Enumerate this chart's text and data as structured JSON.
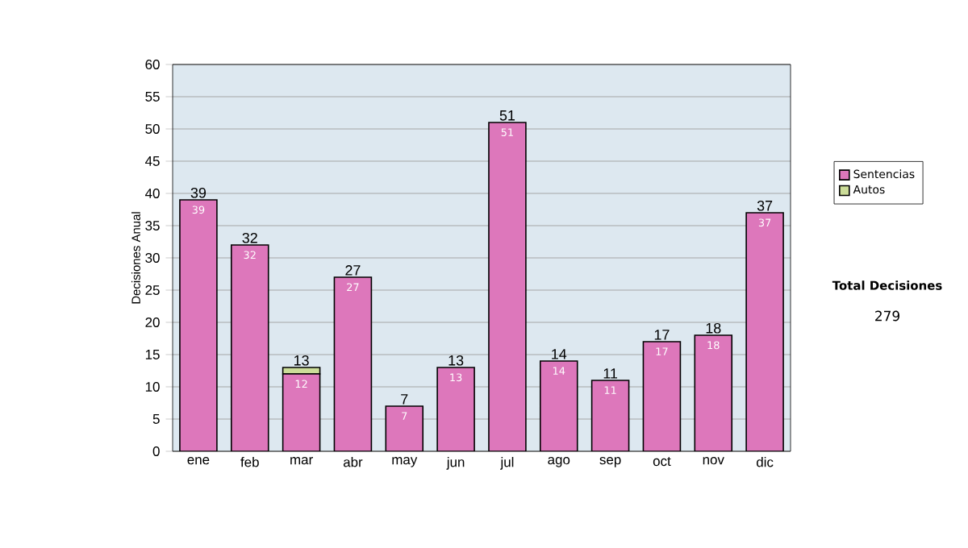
{
  "chart_data": {
    "type": "bar",
    "stacked": true,
    "ylabel": "Decisiones Anual",
    "categories": [
      "ene",
      "feb",
      "mar",
      "abr",
      "may",
      "jun",
      "jul",
      "ago",
      "sep",
      "oct",
      "nov",
      "dic"
    ],
    "series": [
      {
        "name": "Sentencias",
        "color": "#dd77bb",
        "values": [
          39,
          32,
          12,
          27,
          7,
          13,
          51,
          14,
          11,
          17,
          18,
          37
        ],
        "value_labels": [
          "39",
          "32",
          "12",
          "27",
          "7",
          "13",
          "51",
          "14",
          "11",
          "17",
          "18",
          "37"
        ]
      },
      {
        "name": "Autos",
        "color": "#ccdd99",
        "values": [
          0,
          0,
          1,
          0,
          0,
          0,
          0,
          0,
          0,
          0,
          0,
          0
        ]
      }
    ],
    "totals": [
      "39",
      "32",
      "13",
      "27",
      "7",
      "13",
      "51",
      "14",
      "11",
      "17",
      "18",
      "37"
    ],
    "ylim": [
      0,
      60
    ],
    "yticks": [
      0,
      5,
      10,
      15,
      20,
      25,
      30,
      35,
      40,
      45,
      50,
      55,
      60
    ],
    "grid": "y",
    "legend": "right",
    "annotations": [
      "Total Decisiones",
      "279"
    ]
  }
}
